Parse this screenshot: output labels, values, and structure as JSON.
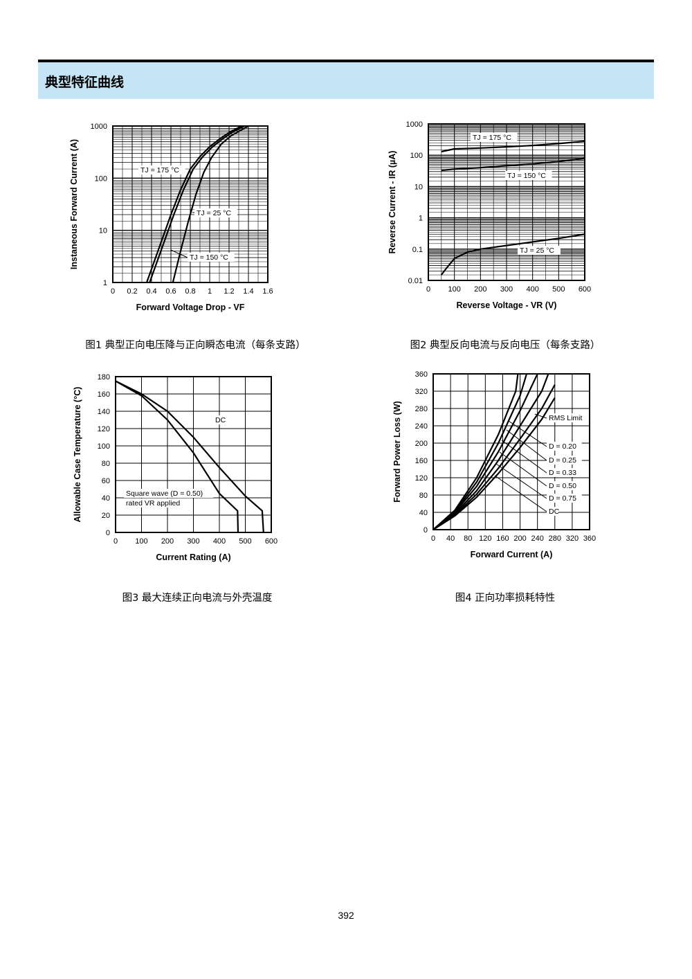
{
  "header": {
    "title": "典型特征曲线"
  },
  "page_number": "392",
  "captions": [
    "图1  典型正向电压降与正向瞬态电流（每条支路）",
    "图2  典型反向电流与反向电压（每条支路）",
    "图3  最大连续正向电流与外壳温度",
    "图4  正向功率损耗特性"
  ],
  "chart_data": [
    {
      "type": "line",
      "xlabel": "Forward Voltage Drop - VF",
      "ylabel": "Instaneous Forward Current (A)",
      "xlim": [
        0,
        1.6
      ],
      "ylim": [
        1,
        1000
      ],
      "yscale": "log",
      "grid": true,
      "x_ticks": [
        "0",
        "0.2",
        "0.4",
        "0.6",
        "0.8",
        "1",
        "1.2",
        "1.4",
        "1.6"
      ],
      "y_ticks": [
        "1",
        "10",
        "100",
        "1000"
      ],
      "series": [
        {
          "name": "TJ = 175 °C",
          "points": [
            [
              0.35,
              1
            ],
            [
              0.5,
              6
            ],
            [
              0.6,
              20
            ],
            [
              0.7,
              60
            ],
            [
              0.8,
              150
            ],
            [
              0.9,
              260
            ],
            [
              1.0,
              400
            ],
            [
              1.1,
              560
            ],
            [
              1.2,
              750
            ],
            [
              1.33,
              1000
            ]
          ]
        },
        {
          "name": "TJ = 150 °C",
          "points": [
            [
              0.38,
              1
            ],
            [
              0.53,
              6
            ],
            [
              0.63,
              20
            ],
            [
              0.73,
              60
            ],
            [
              0.83,
              150
            ],
            [
              0.93,
              260
            ],
            [
              1.03,
              400
            ],
            [
              1.13,
              560
            ],
            [
              1.23,
              750
            ],
            [
              1.36,
              1000
            ]
          ]
        },
        {
          "name": "TJ = 25 °C",
          "points": [
            [
              0.62,
              1
            ],
            [
              0.7,
              4
            ],
            [
              0.78,
              15
            ],
            [
              0.86,
              50
            ],
            [
              0.94,
              130
            ],
            [
              1.02,
              250
            ],
            [
              1.12,
              450
            ],
            [
              1.22,
              650
            ],
            [
              1.4,
              1000
            ]
          ]
        }
      ],
      "annotations": [
        "TJ = 175 °C",
        "TJ = 25 °C",
        "TJ = 150 °C"
      ]
    },
    {
      "type": "line",
      "xlabel": "Reverse Voltage - VR (V)",
      "ylabel": "Reverse Current - IR (µA)",
      "xlim": [
        0,
        600
      ],
      "ylim": [
        0.01,
        1000
      ],
      "yscale": "log",
      "grid": true,
      "x_ticks": [
        "0",
        "100",
        "200",
        "300",
        "400",
        "500",
        "600"
      ],
      "y_ticks": [
        "0.01",
        "0.1",
        "1",
        "10",
        "100",
        "1000"
      ],
      "series": [
        {
          "name": "TJ = 175 °C",
          "points": [
            [
              50,
              130
            ],
            [
              100,
              160
            ],
            [
              200,
              170
            ],
            [
              300,
              185
            ],
            [
              400,
              205
            ],
            [
              500,
              235
            ],
            [
              600,
              280
            ]
          ]
        },
        {
          "name": "TJ = 150 °C",
          "points": [
            [
              50,
              33
            ],
            [
              100,
              36
            ],
            [
              200,
              40
            ],
            [
              300,
              46
            ],
            [
              400,
              53
            ],
            [
              500,
              63
            ],
            [
              600,
              80
            ]
          ]
        },
        {
          "name": "TJ = 25 °C",
          "points": [
            [
              50,
              0.015
            ],
            [
              70,
              0.025
            ],
            [
              100,
              0.05
            ],
            [
              150,
              0.08
            ],
            [
              200,
              0.1
            ],
            [
              300,
              0.13
            ],
            [
              400,
              0.17
            ],
            [
              500,
              0.22
            ],
            [
              600,
              0.3
            ]
          ]
        }
      ],
      "annotations": [
        "TJ = 175 °C",
        "TJ = 150 °C",
        "TJ = 25 °C"
      ]
    },
    {
      "type": "line",
      "xlabel": "Current Rating (A)",
      "ylabel": "Allowable Case Temperature (°C)",
      "xlim": [
        0,
        600
      ],
      "ylim": [
        0,
        180
      ],
      "grid": true,
      "x_ticks": [
        "0",
        "100",
        "200",
        "300",
        "400",
        "500",
        "600"
      ],
      "y_ticks": [
        "0",
        "20",
        "40",
        "60",
        "80",
        "100",
        "120",
        "140",
        "160",
        "180"
      ],
      "series": [
        {
          "name": "DC",
          "points": [
            [
              0,
              175
            ],
            [
              100,
              160
            ],
            [
              200,
              140
            ],
            [
              300,
              110
            ],
            [
              400,
              75
            ],
            [
              500,
              42
            ],
            [
              565,
              25
            ],
            [
              570,
              0
            ]
          ]
        },
        {
          "name": "Square wave (D = 0.50)",
          "points": [
            [
              0,
              175
            ],
            [
              100,
              158
            ],
            [
              200,
              130
            ],
            [
              300,
              92
            ],
            [
              400,
              45
            ],
            [
              470,
              25
            ],
            [
              472,
              0
            ]
          ]
        }
      ],
      "annotations": [
        "DC",
        "Square wave (D = 0.50)",
        "rated VR applied"
      ]
    },
    {
      "type": "line",
      "xlabel": "Forward Current  (A)",
      "ylabel": "Forward Power Loss (W)",
      "xlim": [
        0,
        360
      ],
      "ylim": [
        0,
        360
      ],
      "grid": true,
      "x_ticks": [
        "0",
        "40",
        "80",
        "120",
        "160",
        "200",
        "240",
        "280",
        "320",
        "360"
      ],
      "y_ticks": [
        "0",
        "40",
        "80",
        "120",
        "160",
        "200",
        "240",
        "280",
        "320",
        "360"
      ],
      "series": [
        {
          "name": "D = 0.20",
          "points": [
            [
              0,
              0
            ],
            [
              50,
              45
            ],
            [
              100,
              120
            ],
            [
              150,
              220
            ],
            [
              190,
              320
            ],
            [
              195,
              360
            ]
          ]
        },
        {
          "name": "D = 0.25",
          "points": [
            [
              0,
              0
            ],
            [
              50,
              42
            ],
            [
              100,
              110
            ],
            [
              150,
              200
            ],
            [
              200,
              310
            ],
            [
              215,
              360
            ]
          ]
        },
        {
          "name": "D = 0.33",
          "points": [
            [
              0,
              0
            ],
            [
              50,
              40
            ],
            [
              100,
              100
            ],
            [
              150,
              180
            ],
            [
              200,
              275
            ],
            [
              240,
              360
            ]
          ]
        },
        {
          "name": "D = 0.50",
          "points": [
            [
              0,
              0
            ],
            [
              50,
              37
            ],
            [
              100,
              90
            ],
            [
              150,
              160
            ],
            [
              200,
              240
            ],
            [
              250,
              320
            ],
            [
              265,
              360
            ]
          ]
        },
        {
          "name": "D = 0.75",
          "points": [
            [
              0,
              0
            ],
            [
              50,
              34
            ],
            [
              100,
              82
            ],
            [
              150,
              142
            ],
            [
              200,
              210
            ],
            [
              250,
              280
            ],
            [
              280,
              335
            ]
          ]
        },
        {
          "name": "DC",
          "points": [
            [
              0,
              0
            ],
            [
              50,
              32
            ],
            [
              100,
              75
            ],
            [
              150,
              130
            ],
            [
              200,
              190
            ],
            [
              250,
              255
            ],
            [
              280,
              305
            ]
          ]
        }
      ],
      "annotations": [
        "RMS Limit",
        "D = 0.20",
        "D = 0.25",
        "D = 0.33",
        "D = 0.50",
        "D = 0.75",
        "DC"
      ]
    }
  ]
}
